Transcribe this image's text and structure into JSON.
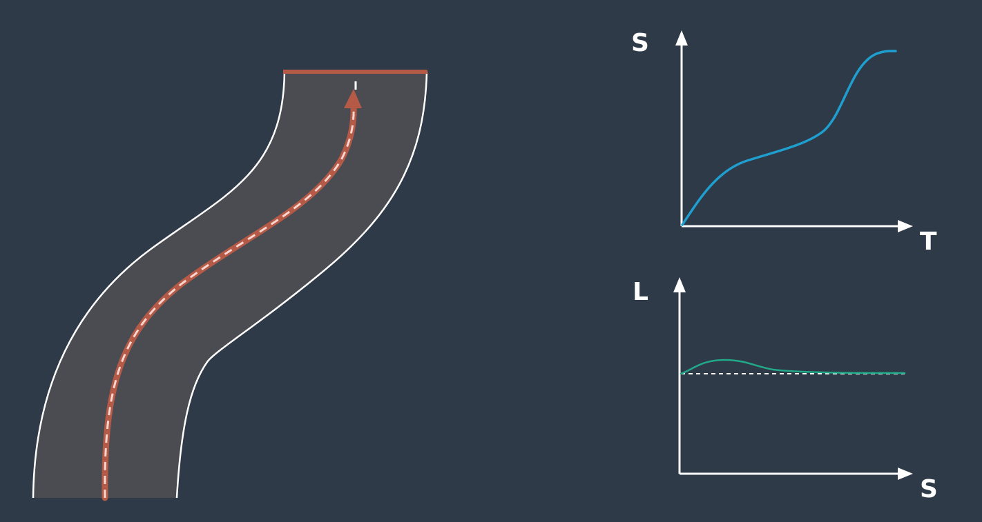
{
  "colors": {
    "background": "#2e3a47",
    "road": "#4b4c52",
    "road_edge": "#ffffff",
    "path": "#b65a48",
    "path_dash": "#f6d6cf",
    "st_curve": "#1f9fcf",
    "ls_curve": "#22a98a",
    "axis": "#ffffff",
    "reference_line": "#ffffff"
  },
  "st_graph": {
    "y_axis_label": "S",
    "x_axis_label": "T"
  },
  "ls_graph": {
    "y_axis_label": "L",
    "x_axis_label": "S"
  }
}
